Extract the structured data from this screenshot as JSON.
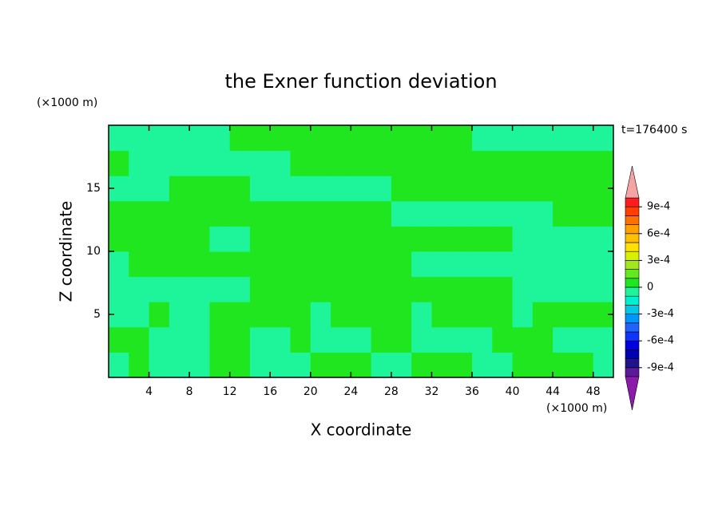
{
  "chart_data": {
    "type": "contour",
    "title": "the Exner function deviation",
    "x_label": "X coordinate",
    "y_label": "Z coordinate",
    "x_unit": "(×1000 m)",
    "y_unit": "(×1000 m)",
    "time_label": "t=176400 s",
    "xlim": [
      0,
      50
    ],
    "ylim": [
      0,
      20
    ],
    "xticks": [
      4,
      8,
      12,
      16,
      20,
      24,
      28,
      32,
      36,
      40,
      44,
      48
    ],
    "yticks": [
      5,
      10,
      15
    ],
    "x": [
      1,
      3,
      5,
      7,
      9,
      11,
      13,
      15,
      17,
      19,
      21,
      23,
      25,
      27,
      29,
      31,
      33,
      35,
      37,
      39,
      41,
      43,
      45,
      47,
      49
    ],
    "y": [
      1,
      3,
      5,
      7,
      9,
      11,
      13,
      15,
      17,
      19
    ],
    "z": [
      [
        -5e-05,
        5e-05,
        -5e-05,
        -5e-05,
        -5e-05,
        5e-05,
        5e-05,
        -5e-05,
        -5e-05,
        -5e-05,
        5e-05,
        5e-05,
        5e-05,
        -5e-05,
        -5e-05,
        5e-05,
        5e-05,
        5e-05,
        -5e-05,
        -5e-05,
        5e-05,
        5e-05,
        5e-05,
        5e-05,
        -5e-05
      ],
      [
        5e-05,
        5e-05,
        -5e-05,
        -5e-05,
        -5e-05,
        5e-05,
        5e-05,
        -5e-05,
        -5e-05,
        5e-05,
        -5e-05,
        -5e-05,
        -5e-05,
        5e-05,
        5e-05,
        -5e-05,
        -5e-05,
        -5e-05,
        -5e-05,
        5e-05,
        5e-05,
        5e-05,
        -5e-05,
        -5e-05,
        -5e-05
      ],
      [
        -5e-05,
        -5e-05,
        5e-05,
        -5e-05,
        -5e-05,
        5e-05,
        5e-05,
        5e-05,
        5e-05,
        5e-05,
        -5e-05,
        5e-05,
        5e-05,
        5e-05,
        5e-05,
        -5e-05,
        5e-05,
        5e-05,
        5e-05,
        5e-05,
        -5e-05,
        5e-05,
        5e-05,
        5e-05,
        5e-05
      ],
      [
        -5e-05,
        -5e-05,
        -5e-05,
        -5e-05,
        -5e-05,
        -5e-05,
        -5e-05,
        5e-05,
        5e-05,
        5e-05,
        5e-05,
        5e-05,
        5e-05,
        5e-05,
        5e-05,
        5e-05,
        5e-05,
        5e-05,
        5e-05,
        5e-05,
        -5e-05,
        -5e-05,
        -5e-05,
        -5e-05,
        -5e-05
      ],
      [
        -5e-05,
        5e-05,
        5e-05,
        5e-05,
        5e-05,
        5e-05,
        5e-05,
        5e-05,
        5e-05,
        5e-05,
        5e-05,
        5e-05,
        5e-05,
        5e-05,
        5e-05,
        -5e-05,
        -5e-05,
        -5e-05,
        -5e-05,
        -5e-05,
        -5e-05,
        -5e-05,
        -5e-05,
        -5e-05,
        -5e-05
      ],
      [
        5e-05,
        5e-05,
        5e-05,
        5e-05,
        5e-05,
        -5e-05,
        -5e-05,
        5e-05,
        5e-05,
        5e-05,
        5e-05,
        5e-05,
        5e-05,
        5e-05,
        5e-05,
        5e-05,
        5e-05,
        5e-05,
        5e-05,
        5e-05,
        -5e-05,
        -5e-05,
        -5e-05,
        -5e-05,
        -5e-05
      ],
      [
        5e-05,
        5e-05,
        5e-05,
        5e-05,
        5e-05,
        5e-05,
        5e-05,
        5e-05,
        5e-05,
        5e-05,
        5e-05,
        5e-05,
        5e-05,
        5e-05,
        -5e-05,
        -5e-05,
        -5e-05,
        -5e-05,
        -5e-05,
        -5e-05,
        -5e-05,
        -5e-05,
        5e-05,
        5e-05,
        5e-05
      ],
      [
        -5e-05,
        -5e-05,
        -5e-05,
        5e-05,
        5e-05,
        5e-05,
        5e-05,
        -5e-05,
        -5e-05,
        -5e-05,
        -5e-05,
        -5e-05,
        -5e-05,
        -5e-05,
        5e-05,
        5e-05,
        5e-05,
        5e-05,
        5e-05,
        5e-05,
        5e-05,
        5e-05,
        5e-05,
        5e-05,
        5e-05
      ],
      [
        5e-05,
        -5e-05,
        -5e-05,
        -5e-05,
        -5e-05,
        -5e-05,
        -5e-05,
        -5e-05,
        -5e-05,
        5e-05,
        5e-05,
        5e-05,
        5e-05,
        5e-05,
        5e-05,
        5e-05,
        5e-05,
        5e-05,
        5e-05,
        5e-05,
        5e-05,
        5e-05,
        5e-05,
        5e-05,
        5e-05
      ],
      [
        -5e-05,
        -5e-05,
        -5e-05,
        -5e-05,
        -5e-05,
        -5e-05,
        5e-05,
        5e-05,
        5e-05,
        5e-05,
        5e-05,
        5e-05,
        5e-05,
        5e-05,
        5e-05,
        5e-05,
        5e-05,
        5e-05,
        -5e-05,
        -5e-05,
        -5e-05,
        -5e-05,
        -5e-05,
        -5e-05,
        -5e-05
      ]
    ],
    "levels": [
      -0.001,
      -0.0009,
      -0.0008,
      -0.0007,
      -0.0006,
      -0.0005,
      -0.0004,
      -0.0003,
      -0.0002,
      -0.0001,
      0,
      0.0001,
      0.0002,
      0.0003,
      0.0004,
      0.0005,
      0.0006,
      0.0007,
      0.0008,
      0.0009,
      0.001
    ],
    "colors": [
      "#5a1a9a",
      "#20148c",
      "#0000b4",
      "#0000e0",
      "#1034ff",
      "#2064ff",
      "#0096ff",
      "#00c8e6",
      "#00f0d2",
      "#1ef59a",
      "#20e620",
      "#64e820",
      "#a4e81c",
      "#d8f000",
      "#ffe000",
      "#ffc000",
      "#ffa000",
      "#ff7000",
      "#ff4000",
      "#ff1c1c"
    ],
    "under_color": "#8c1aaa",
    "over_color": "#f4a4a4",
    "cticks": [
      {
        "value": 0.0009,
        "label": "9e-4"
      },
      {
        "value": 0.0006,
        "label": "6e-4"
      },
      {
        "value": 0.0003,
        "label": "3e-4"
      },
      0,
      {
        "value": -0.0003,
        "label": "-3e-4"
      },
      {
        "value": -0.0006,
        "label": "-6e-4"
      },
      {
        "value": -0.0009,
        "label": "-9e-4"
      }
    ]
  }
}
